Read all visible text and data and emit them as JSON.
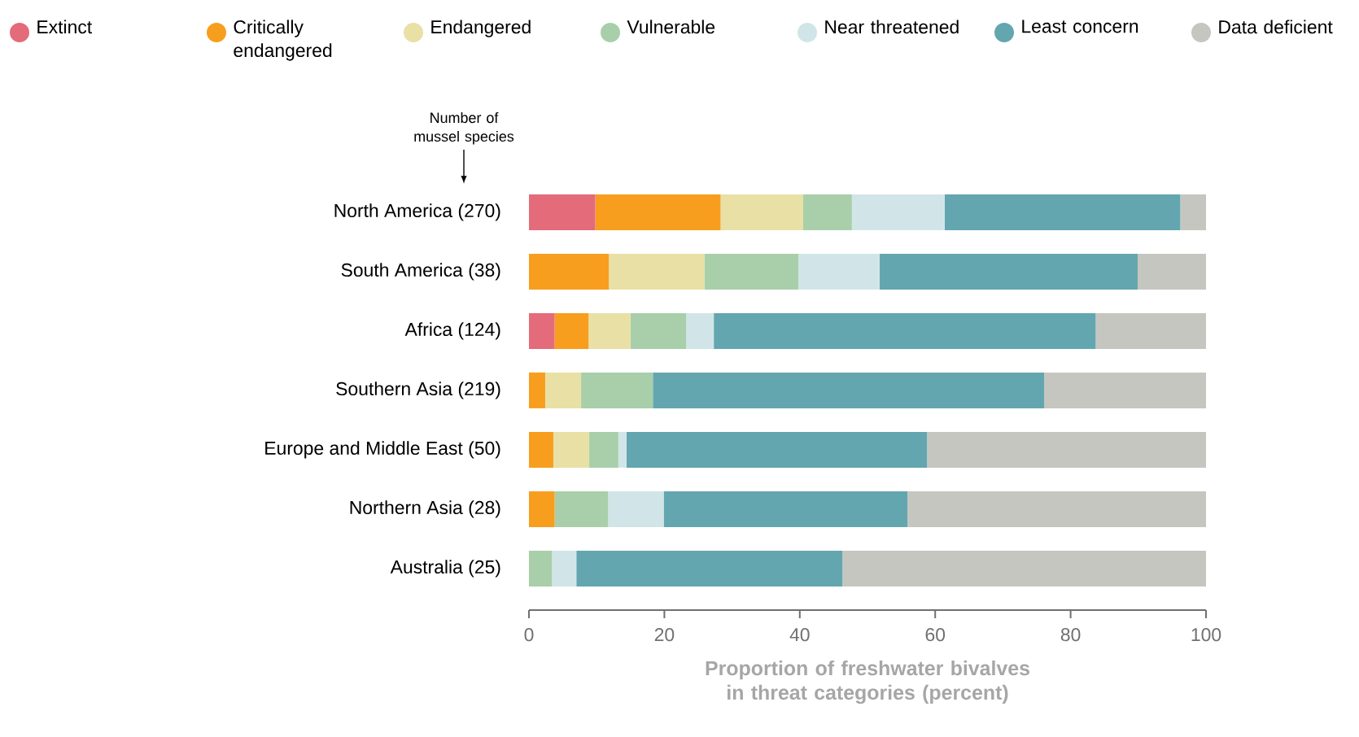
{
  "chart_data": {
    "type": "bar",
    "orientation": "horizontal",
    "stacked": true,
    "categories": [
      "North America (270)",
      "South America (38)",
      "Africa (124)",
      "Southern Asia (219)",
      "Europe and Middle East (50)",
      "Northern Asia (28)",
      "Australia (25)"
    ],
    "series": [
      {
        "name": "Extinct",
        "color": "#e36b7a",
        "values": [
          9.8,
          null,
          3.8,
          null,
          null,
          null,
          null
        ]
      },
      {
        "name": "Critically endangered",
        "color": "#f79e1e",
        "values": [
          18.5,
          11.8,
          5.0,
          2.4,
          3.6,
          3.8,
          null
        ]
      },
      {
        "name": "Endangered",
        "color": "#e9e0a6",
        "values": [
          12.2,
          14.1,
          6.2,
          5.3,
          5.3,
          null,
          null
        ]
      },
      {
        "name": "Vulnerable",
        "color": "#a8cfaa",
        "values": [
          7.2,
          13.9,
          8.2,
          10.6,
          4.3,
          7.9,
          3.4
        ]
      },
      {
        "name": "Near threatened",
        "color": "#d1e5e8",
        "values": [
          13.7,
          12.0,
          4.1,
          null,
          1.2,
          8.2,
          3.6
        ]
      },
      {
        "name": "Least concern",
        "color": "#63a6af",
        "values": [
          34.8,
          38.1,
          56.4,
          57.8,
          44.4,
          36.0,
          39.3
        ]
      },
      {
        "name": "Data deficient",
        "color": "#c6c6c0",
        "values": [
          3.8,
          10.1,
          16.3,
          24.0,
          41.2,
          44.1,
          53.7
        ]
      }
    ],
    "xlim": [
      0,
      100
    ],
    "xticks": [
      0,
      20,
      40,
      60,
      80,
      100
    ],
    "xlabel": "Proportion of freshwater bivalves in threat categories (percent)",
    "annotations": [
      "Number of mussel species"
    ],
    "legend": "top",
    "grid": false
  }
}
